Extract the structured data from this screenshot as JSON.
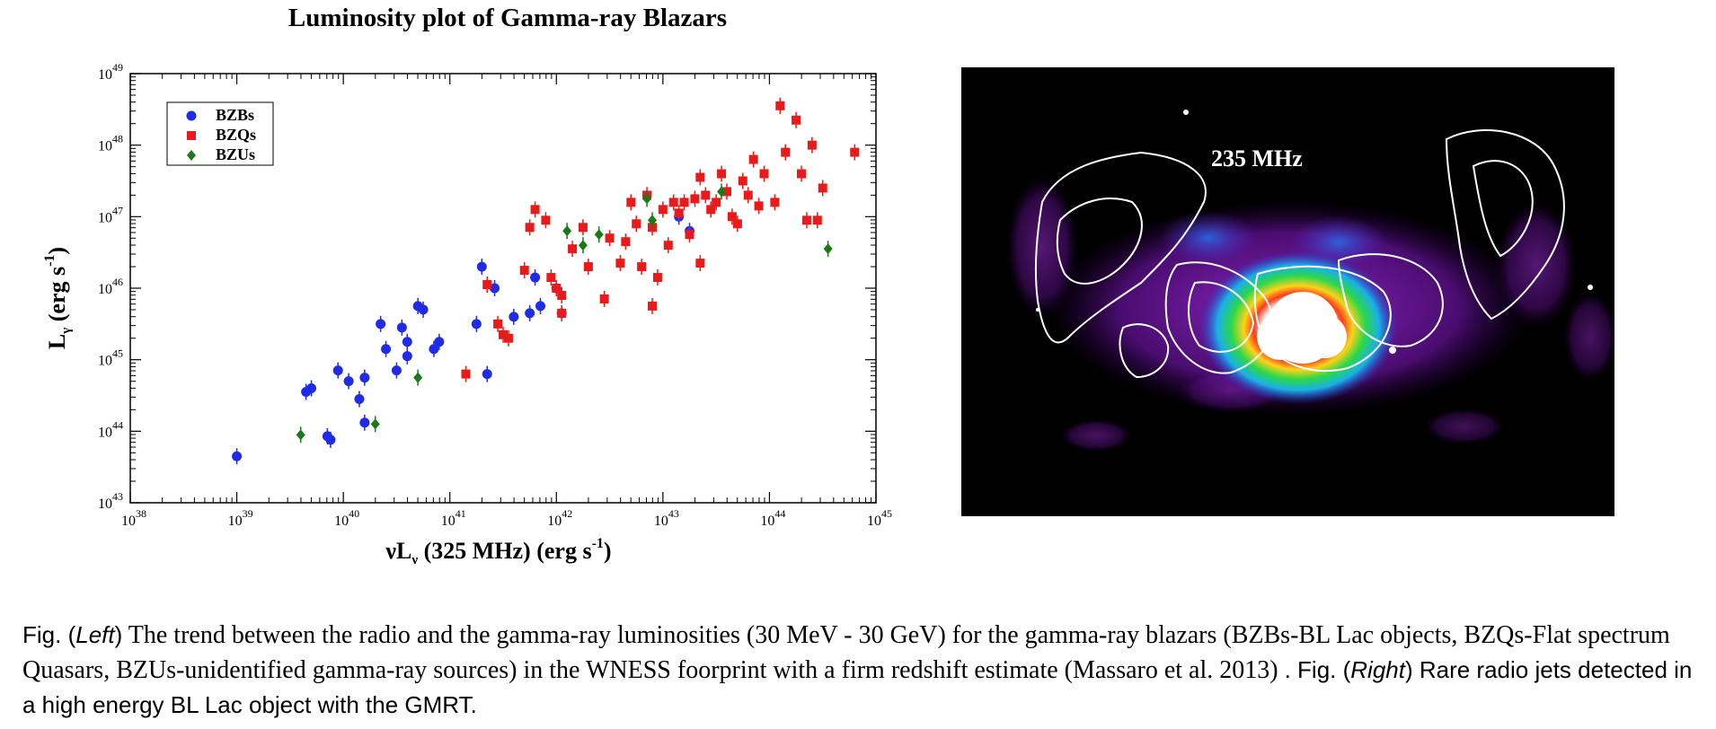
{
  "chart_data": {
    "type": "scatter",
    "title": "Luminosity plot of Gamma-ray Blazars",
    "xlabel": "νLν (325 MHz) (erg s⁻¹)",
    "ylabel": "Lγ (erg s⁻¹)",
    "x_scale": "log",
    "y_scale": "log",
    "xlim": [
      1e+38,
      1e+45
    ],
    "ylim": [
      1e+43,
      1e+49
    ],
    "x_ticks": [
      "10^38",
      "10^39",
      "10^40",
      "10^41",
      "10^42",
      "10^43",
      "10^44",
      "10^45"
    ],
    "y_ticks": [
      "10^43",
      "10^44",
      "10^45",
      "10^46",
      "10^47",
      "10^48",
      "10^49"
    ],
    "legend_position": "top-left",
    "grid": false,
    "series": [
      {
        "name": "BZBs",
        "color": "#1f2be6",
        "marker": "circle",
        "points": [
          [
            39.0,
            43.65
          ],
          [
            39.65,
            44.55
          ],
          [
            39.7,
            44.6
          ],
          [
            39.85,
            43.93
          ],
          [
            39.88,
            43.88
          ],
          [
            39.95,
            44.85
          ],
          [
            40.05,
            44.7
          ],
          [
            40.15,
            44.45
          ],
          [
            40.2,
            44.12
          ],
          [
            40.2,
            44.75
          ],
          [
            40.35,
            45.5
          ],
          [
            40.4,
            45.15
          ],
          [
            40.5,
            44.85
          ],
          [
            40.55,
            45.45
          ],
          [
            40.6,
            45.25
          ],
          [
            40.6,
            45.05
          ],
          [
            40.7,
            45.75
          ],
          [
            40.75,
            45.7
          ],
          [
            40.85,
            45.15
          ],
          [
            40.9,
            45.25
          ],
          [
            41.25,
            45.5
          ],
          [
            41.3,
            46.3
          ],
          [
            41.35,
            44.8
          ],
          [
            41.42,
            46.0
          ],
          [
            41.6,
            45.6
          ],
          [
            41.75,
            45.65
          ],
          [
            41.8,
            46.15
          ],
          [
            41.85,
            45.75
          ],
          [
            42.0,
            46.0
          ],
          [
            42.05,
            45.65
          ],
          [
            43.15,
            47.0
          ],
          [
            43.25,
            46.8
          ]
        ]
      },
      {
        "name": "BZQs",
        "color": "#e81a1a",
        "marker": "square",
        "points": [
          [
            41.15,
            44.8
          ],
          [
            41.35,
            46.05
          ],
          [
            41.45,
            45.5
          ],
          [
            41.5,
            45.35
          ],
          [
            41.55,
            45.3
          ],
          [
            41.7,
            46.25
          ],
          [
            41.75,
            46.85
          ],
          [
            41.8,
            47.1
          ],
          [
            41.9,
            46.95
          ],
          [
            41.95,
            46.15
          ],
          [
            42.0,
            46.0
          ],
          [
            42.05,
            45.9
          ],
          [
            42.05,
            45.65
          ],
          [
            42.15,
            46.55
          ],
          [
            42.25,
            46.85
          ],
          [
            42.3,
            46.3
          ],
          [
            42.45,
            45.85
          ],
          [
            42.5,
            46.7
          ],
          [
            42.6,
            46.35
          ],
          [
            42.65,
            46.65
          ],
          [
            42.7,
            47.2
          ],
          [
            42.75,
            46.9
          ],
          [
            42.8,
            46.3
          ],
          [
            42.85,
            47.3
          ],
          [
            42.9,
            46.85
          ],
          [
            42.9,
            45.75
          ],
          [
            42.95,
            46.15
          ],
          [
            43.0,
            47.1
          ],
          [
            43.05,
            46.6
          ],
          [
            43.1,
            47.2
          ],
          [
            43.15,
            47.05
          ],
          [
            43.2,
            47.2
          ],
          [
            43.25,
            46.75
          ],
          [
            43.3,
            47.25
          ],
          [
            43.35,
            47.55
          ],
          [
            43.35,
            46.35
          ],
          [
            43.4,
            47.3
          ],
          [
            43.45,
            47.1
          ],
          [
            43.5,
            47.2
          ],
          [
            43.55,
            47.6
          ],
          [
            43.6,
            47.35
          ],
          [
            43.65,
            47.0
          ],
          [
            43.7,
            46.9
          ],
          [
            43.75,
            47.5
          ],
          [
            43.8,
            47.3
          ],
          [
            43.85,
            47.8
          ],
          [
            43.9,
            47.15
          ],
          [
            43.95,
            47.6
          ],
          [
            44.05,
            47.2
          ],
          [
            44.1,
            48.55
          ],
          [
            44.15,
            47.9
          ],
          [
            44.25,
            48.35
          ],
          [
            44.3,
            47.6
          ],
          [
            44.35,
            46.95
          ],
          [
            44.4,
            48.0
          ],
          [
            44.8,
            47.9
          ],
          [
            44.5,
            47.4
          ],
          [
            44.45,
            46.95
          ]
        ]
      },
      {
        "name": "BZUs",
        "color": "#1a7a1a",
        "marker": "diamond",
        "points": [
          [
            39.6,
            43.95
          ],
          [
            40.3,
            44.1
          ],
          [
            40.7,
            44.75
          ],
          [
            42.1,
            46.8
          ],
          [
            42.25,
            46.6
          ],
          [
            42.4,
            46.75
          ],
          [
            42.85,
            47.25
          ],
          [
            42.9,
            46.95
          ],
          [
            43.55,
            47.35
          ],
          [
            44.55,
            46.55
          ]
        ]
      }
    ]
  },
  "radio_image": {
    "label": "235 MHz"
  },
  "caption": {
    "fig_prefix": "Fig. (",
    "left_word": "Left",
    "close_paren": ")",
    "left_text": " The trend between the radio and the gamma-ray luminosities (30 MeV - 30 GeV) for the gamma-ray blazars (BZBs-BL Lac objects, BZQs-Flat spectrum Quasars, BZUs-unidentified gamma-ray sources) in the WNESS foorprint with a firm redshift estimate (Massaro et al. 2013) ",
    "right_prefix": ". Fig. (",
    "right_word": "Right",
    "right_text": ") Rare radio jets detected in a high energy BL Lac object with the GMRT."
  }
}
